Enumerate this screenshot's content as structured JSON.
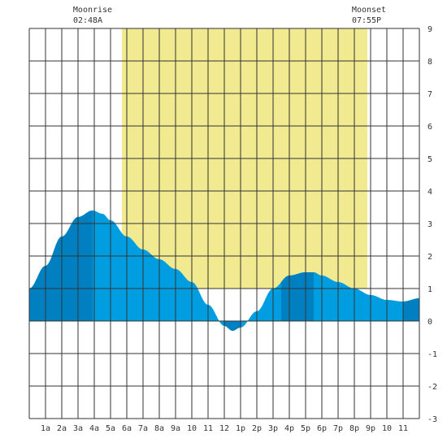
{
  "moon": {
    "rise": {
      "label": "Moonrise",
      "time": "02:48A",
      "hour": 2.8
    },
    "set": {
      "label": "Moonset",
      "time": "07:55P",
      "hour": 19.917
    }
  },
  "chart_data": {
    "type": "area",
    "title": "",
    "xlabel": "",
    "ylabel": "",
    "xlim": [
      0,
      24
    ],
    "ylim": [
      -3,
      9
    ],
    "grid": true,
    "x_tick_labels": [
      "1a",
      "2a",
      "3a",
      "4a",
      "5a",
      "6a",
      "7a",
      "8a",
      "9a",
      "10",
      "11",
      "12",
      "1p",
      "2p",
      "3p",
      "4p",
      "5p",
      "6p",
      "7p",
      "8p",
      "9p",
      "10",
      "11"
    ],
    "y_ticks": [
      9,
      8,
      7,
      6,
      5,
      4,
      3,
      2,
      1,
      0,
      -1,
      -2,
      -3
    ],
    "daylight": {
      "start_hour": 5.7,
      "end_hour": 20.8
    },
    "series": [
      {
        "x": [
          0,
          1,
          2,
          3,
          3.9,
          4.5,
          5,
          6,
          7,
          8,
          9,
          10,
          11,
          12,
          12.5,
          13,
          14,
          15,
          16,
          17,
          17.5,
          18,
          19,
          20,
          21,
          22,
          23,
          24
        ],
        "values": [
          1.0,
          1.7,
          2.6,
          3.2,
          3.4,
          3.3,
          3.1,
          2.6,
          2.2,
          1.9,
          1.6,
          1.2,
          0.5,
          -0.15,
          -0.3,
          -0.2,
          0.3,
          1.0,
          1.4,
          1.5,
          1.5,
          1.4,
          1.2,
          1.0,
          0.8,
          0.65,
          0.6,
          0.7
        ]
      }
    ],
    "colors": {
      "daylight": "#f2ea90",
      "tide_light": "#009ee0",
      "tide_dark": "#0080c0",
      "grid": "#333333"
    },
    "dark_bands": [
      [
        0,
        3.9
      ],
      [
        12,
        13
      ],
      [
        15.5,
        17.5
      ],
      [
        23,
        24
      ]
    ]
  }
}
